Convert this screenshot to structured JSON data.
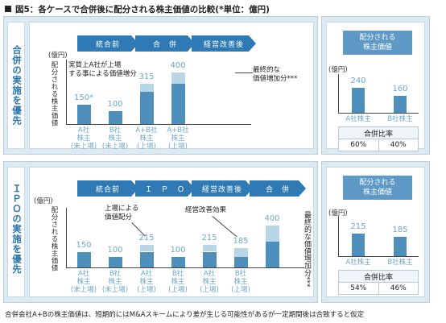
{
  "title": "図5：各ケースで合併後に配分される株主価値の比較(*単位：億円)",
  "colors": {
    "primary": "#2f79b4",
    "bar": "#4f8fbb",
    "bar_add": "#b9d6e6",
    "panel_bg": "#dce9f1",
    "accent_text": "#6fa8c9"
  },
  "top": {
    "section_label": "合併の実施を優先",
    "flow": [
      "統合前",
      "合　併",
      "経営改善後"
    ],
    "unit": "(億円)",
    "y_title": "配分される株主価値",
    "note_left": "実質上A社が上場\nする事による価値増分",
    "note_right": "最終的な\n価値増加分***",
    "bars": [
      {
        "label": "150*",
        "value": 150,
        "add": 0,
        "xlabel": "A社\n株主\n(未上場)"
      },
      {
        "label": "100",
        "value": 100,
        "add": 0,
        "xlabel": "B社\n株主\n(未上場)"
      },
      {
        "label": "315",
        "value": 250,
        "add": 65,
        "xlabel": "A+B社\n株主\n(上場)"
      },
      {
        "label": "400",
        "value": 315,
        "add": 85,
        "xlabel": "A+B社\n株主\n(上場)"
      }
    ],
    "right": {
      "title": "配分される\n株主価値",
      "unit": "(億円)",
      "bars": [
        {
          "label": "240",
          "value": 240,
          "xlabel": "A社株主"
        },
        {
          "label": "160",
          "value": 160,
          "xlabel": "B社株主"
        }
      ],
      "ratio_header": "合併比率",
      "ratios": [
        "60%",
        "40%"
      ]
    }
  },
  "bottom": {
    "section_label": "ＩＰＯの実施を優先",
    "flow": [
      "統合前",
      "Ｉ　Ｐ　Ｏ",
      "経営改善後",
      "合　併"
    ],
    "unit": "(億円)",
    "y_title": "配分される株主価値",
    "note_ipo": "上場による\n価値配分",
    "note_improve": "経営改善効果",
    "note_final": "最終的な価値増加分***",
    "bars": [
      {
        "label": "150",
        "value": 150,
        "add": 0,
        "xlabel": "A社\n株主\n(未上場)"
      },
      {
        "label": "100",
        "value": 100,
        "add": 0,
        "xlabel": "B社\n株主\n(未上場)"
      },
      {
        "label": "215",
        "value": 150,
        "add": 65,
        "xlabel": "A社\n株主\n(上場)"
      },
      {
        "label": "100",
        "value": 100,
        "add": 0,
        "xlabel": "B社\n株主\n(上場)"
      },
      {
        "label": "215",
        "value": 150,
        "add": 65,
        "xlabel": "A社\n株主\n(上場)"
      },
      {
        "label": "185",
        "value": 100,
        "add": 85,
        "xlabel": "B社\n株主\n(上場)"
      },
      {
        "label": "400",
        "value": 250,
        "add": 150,
        "xlabel": ""
      }
    ],
    "right": {
      "title": "配分される\n株主価値",
      "unit": "(億円)",
      "bars": [
        {
          "label": "215",
          "value": 215,
          "xlabel": "A社株主"
        },
        {
          "label": "185",
          "value": 185,
          "xlabel": "B社株主"
        }
      ],
      "ratio_header": "合併比率",
      "ratios": [
        "54%",
        "46%"
      ]
    }
  },
  "footer": "合併会社A+Bの株主価値は、短期的にはM&Aスキームにより差が生じる可能性があるが一定期間後は合致すると仮定"
}
